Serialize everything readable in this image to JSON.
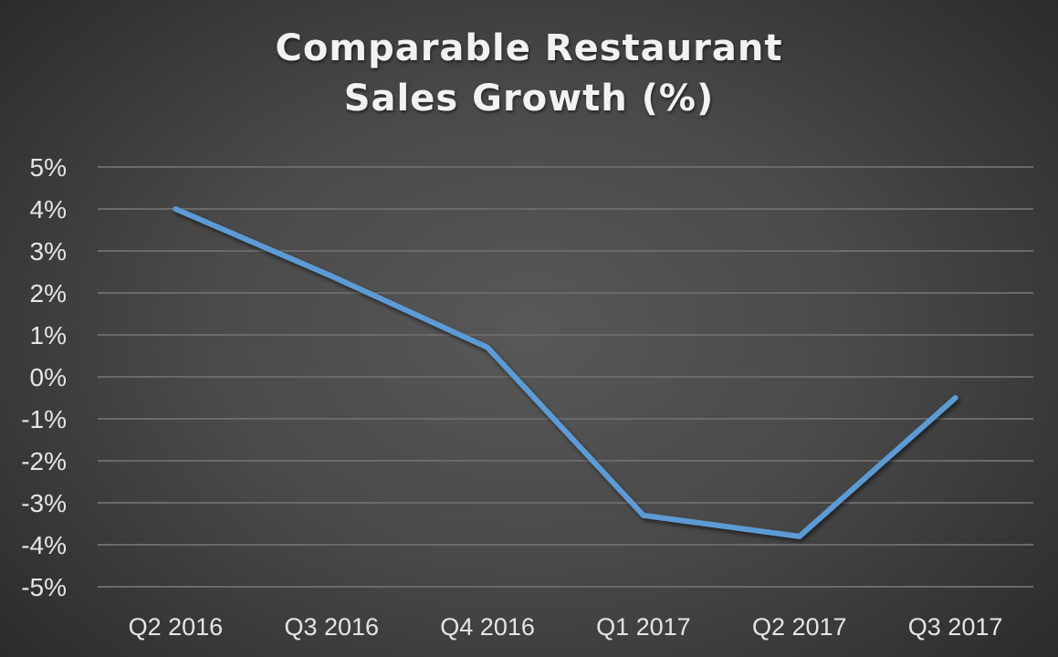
{
  "chart": {
    "title_line1": "Comparable Restaurant",
    "title_line2": "Sales Growth (%)",
    "line_color": "#5b9bd5",
    "grid_color": "#6a6a6a"
  },
  "chart_data": {
    "type": "line",
    "title": "Comparable Restaurant Sales Growth (%)",
    "xlabel": "",
    "ylabel": "",
    "categories": [
      "Q2 2016",
      "Q3 2016",
      "Q4 2016",
      "Q1 2017",
      "Q2 2017",
      "Q3 2017"
    ],
    "series": [
      {
        "name": "Comparable Restaurant Sales Growth",
        "values": [
          4.0,
          2.4,
          0.7,
          -3.3,
          -3.8,
          -0.5
        ]
      }
    ],
    "ylim": [
      -5,
      5
    ],
    "yticks": [
      "5%",
      "4%",
      "3%",
      "2%",
      "1%",
      "0%",
      "-1%",
      "-2%",
      "-3%",
      "-4%",
      "-5%"
    ],
    "grid": true,
    "legend": "none"
  }
}
